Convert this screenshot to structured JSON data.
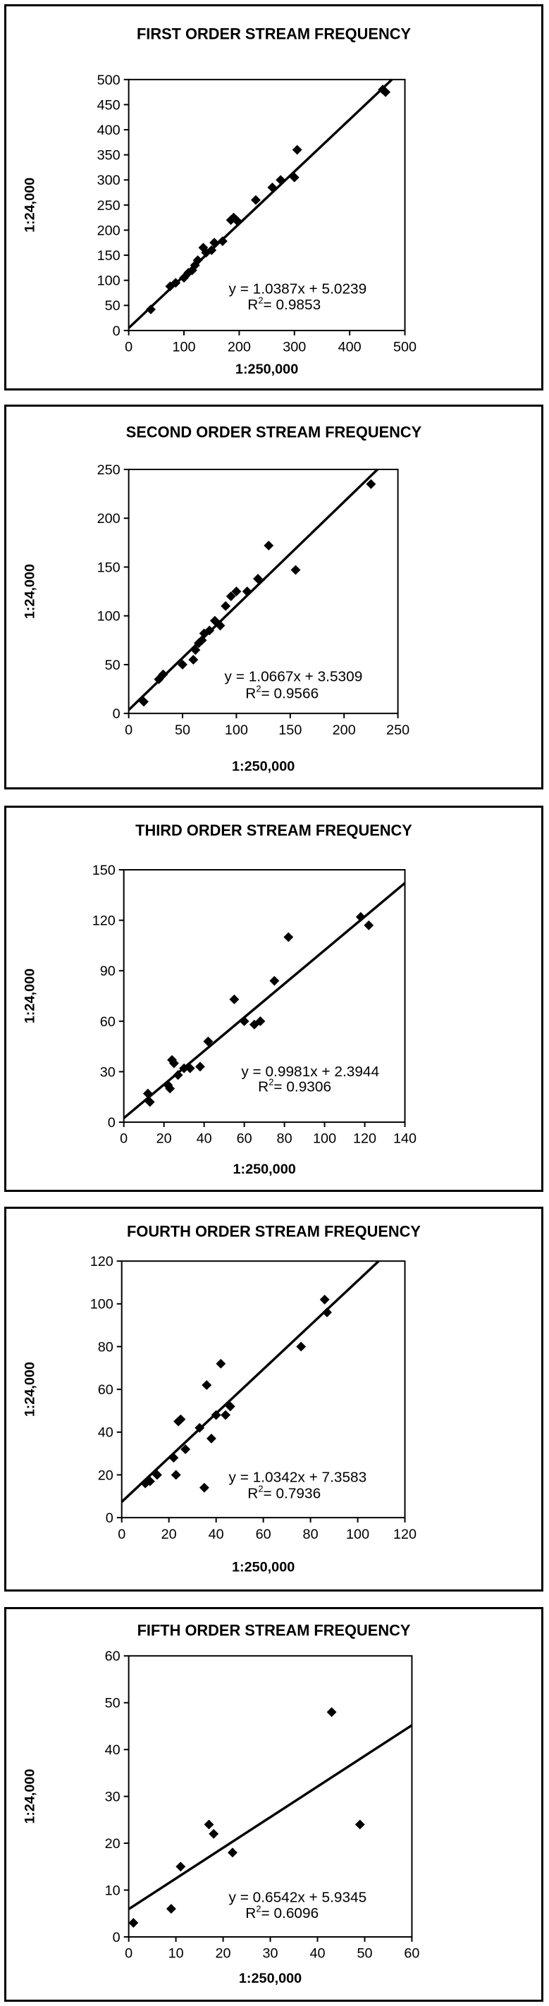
{
  "chart_data": [
    {
      "type": "scatter",
      "title": "FIRST ORDER STREAM FREQUENCY",
      "xlabel": "1:250,000",
      "ylabel": "1:24,000",
      "xlim": [
        0,
        500
      ],
      "ylim": [
        0,
        500
      ],
      "xticks": [
        "0",
        "100",
        "200",
        "300",
        "400",
        "500"
      ],
      "yticks": [
        "0",
        "50",
        "100",
        "150",
        "200",
        "250",
        "300",
        "350",
        "400",
        "450",
        "500"
      ],
      "x": [
        40,
        75,
        85,
        100,
        108,
        115,
        120,
        125,
        135,
        140,
        150,
        155,
        170,
        185,
        190,
        195,
        230,
        260,
        275,
        300,
        305,
        460,
        465
      ],
      "y": [
        42,
        88,
        95,
        105,
        115,
        120,
        130,
        140,
        165,
        155,
        160,
        175,
        178,
        220,
        225,
        220,
        260,
        285,
        300,
        305,
        360,
        480,
        475
      ],
      "trendline": {
        "slope": 1.0387,
        "intercept": 5.0239,
        "equation": "y = 1.0387x + 5.0239",
        "r2_label": "R",
        "r2_sup": "2",
        "r2_value": "= 0.9853"
      },
      "grid": false
    },
    {
      "type": "scatter",
      "title": "SECOND ORDER STREAM FREQUENCY",
      "xlabel": "1:250,000",
      "ylabel": "1:24,000",
      "xlim": [
        0,
        250
      ],
      "ylim": [
        0,
        250
      ],
      "xticks": [
        "0",
        "50",
        "100",
        "150",
        "200",
        "250"
      ],
      "yticks": [
        "0",
        "50",
        "100",
        "150",
        "200",
        "250"
      ],
      "x": [
        14,
        28,
        32,
        50,
        60,
        62,
        65,
        68,
        70,
        75,
        80,
        85,
        90,
        95,
        100,
        110,
        120,
        130,
        155,
        225
      ],
      "y": [
        12,
        35,
        40,
        50,
        55,
        65,
        72,
        75,
        82,
        85,
        95,
        90,
        110,
        120,
        125,
        125,
        138,
        172,
        147,
        235
      ],
      "trendline": {
        "slope": 1.0667,
        "intercept": 3.5309,
        "equation": "y = 1.0667x + 3.5309",
        "r2_label": "R",
        "r2_sup": "2",
        "r2_value": "= 0.9566"
      },
      "grid": false
    },
    {
      "type": "scatter",
      "title": "THIRD ORDER STREAM FREQUENCY",
      "xlabel": "1:250,000",
      "ylabel": "1:24,000",
      "xlim": [
        0,
        140
      ],
      "ylim": [
        0,
        150
      ],
      "xticks": [
        "0",
        "20",
        "40",
        "60",
        "80",
        "100",
        "120",
        "140"
      ],
      "yticks": [
        "0",
        "30",
        "60",
        "90",
        "120",
        "150"
      ],
      "x": [
        12,
        13,
        22,
        23,
        24,
        25,
        27,
        30,
        33,
        38,
        42,
        55,
        60,
        65,
        68,
        75,
        82,
        118,
        122
      ],
      "y": [
        17,
        12,
        22,
        20,
        37,
        35,
        28,
        32,
        32,
        33,
        48,
        73,
        60,
        58,
        60,
        84,
        110,
        122,
        117
      ],
      "trendline": {
        "slope": 0.9981,
        "intercept": 2.3944,
        "equation": "y = 0.9981x + 2.3944",
        "r2_label": "R",
        "r2_sup": "2",
        "r2_value": "= 0.9306"
      },
      "grid": false
    },
    {
      "type": "scatter",
      "title": "FOURTH ORDER STREAM FREQUENCY",
      "xlabel": "1:250,000",
      "ylabel": "1:24,000",
      "xlim": [
        0,
        120
      ],
      "ylim": [
        0,
        120
      ],
      "xticks": [
        "0",
        "20",
        "40",
        "60",
        "80",
        "100",
        "120"
      ],
      "yticks": [
        "0",
        "20",
        "40",
        "60",
        "80",
        "100",
        "120"
      ],
      "x": [
        10,
        12,
        15,
        22,
        23,
        24,
        25,
        27,
        33,
        35,
        36,
        38,
        40,
        42,
        44,
        46,
        76,
        86,
        87
      ],
      "y": [
        16,
        17,
        20,
        28,
        20,
        45,
        46,
        32,
        42,
        14,
        62,
        37,
        48,
        72,
        48,
        52,
        80,
        102,
        96
      ],
      "trendline": {
        "slope": 1.0342,
        "intercept": 7.3583,
        "equation": "y = 1.0342x + 7.3583",
        "r2_label": "R",
        "r2_sup": "2",
        "r2_value": "= 0.7936"
      },
      "grid": false
    },
    {
      "type": "scatter",
      "title": "FIFTH ORDER STREAM FREQUENCY",
      "xlabel": "1:250,000",
      "ylabel": "1:24,000",
      "xlim": [
        0,
        60
      ],
      "ylim": [
        0,
        60
      ],
      "xticks": [
        "0",
        "10",
        "20",
        "30",
        "40",
        "50",
        "60"
      ],
      "yticks": [
        "0",
        "10",
        "20",
        "30",
        "40",
        "50",
        "60"
      ],
      "x": [
        1,
        9,
        11,
        17,
        18,
        22,
        43,
        49
      ],
      "y": [
        3,
        6,
        15,
        24,
        22,
        18,
        48,
        24
      ],
      "trendline": {
        "slope": 0.6542,
        "intercept": 5.9345,
        "equation": "y = 0.6542x + 5.9345",
        "r2_label": "R",
        "r2_sup": "2",
        "r2_value": "= 0.6096"
      },
      "grid": false
    }
  ]
}
